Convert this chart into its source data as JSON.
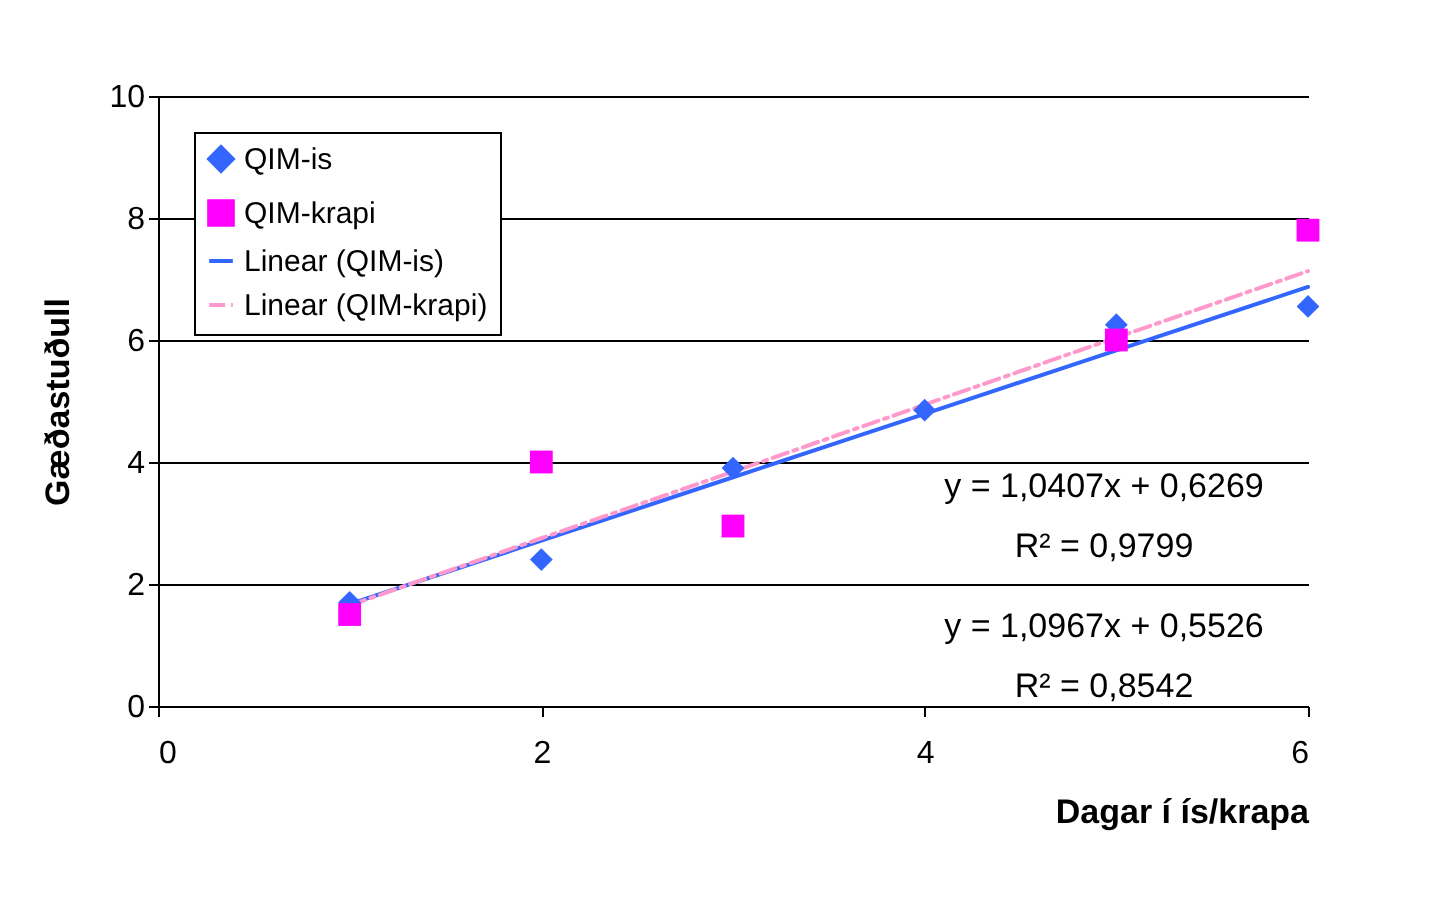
{
  "chart_data": {
    "type": "scatter",
    "xlabel": "Dagar í ís/krapa",
    "ylabel": "Gæðastuðull",
    "x": [
      1,
      2,
      3,
      4,
      5,
      6
    ],
    "series": [
      {
        "name": "QIM-is",
        "color": "#3366ff",
        "marker": "diamond",
        "values": [
          1.7,
          2.4,
          3.9,
          4.85,
          6.25,
          6.55
        ]
      },
      {
        "name": "QIM-krapi",
        "color": "#ff00ff",
        "marker": "square",
        "values": [
          1.5,
          4.0,
          2.95,
          null,
          6.0,
          7.8
        ]
      },
      {
        "name": "Linear (QIM-is)",
        "type": "line",
        "color": "#3366ff",
        "line_style": "solid",
        "marker": "none",
        "values": [
          1.67,
          2.71,
          3.75,
          4.79,
          5.83,
          6.87
        ]
      },
      {
        "name": "Linear (QIM-krapi)",
        "type": "line",
        "color": "#ff99cc",
        "line_style": "dashed",
        "marker": "none",
        "values": [
          1.65,
          2.75,
          3.84,
          4.94,
          6.04,
          7.13
        ]
      }
    ],
    "xlim": [
      0,
      6
    ],
    "xticks": [
      0,
      2,
      4,
      6
    ],
    "ylim": [
      0,
      10
    ],
    "yticks": [
      0,
      2,
      4,
      6,
      8,
      10
    ],
    "grid": "y",
    "legend": "top left",
    "annotations": [
      "y = 1,0407x + 0,6269\nR² = 0,9799",
      "y = 1,0967x + 0,5526\nR² = 0,8542"
    ]
  }
}
